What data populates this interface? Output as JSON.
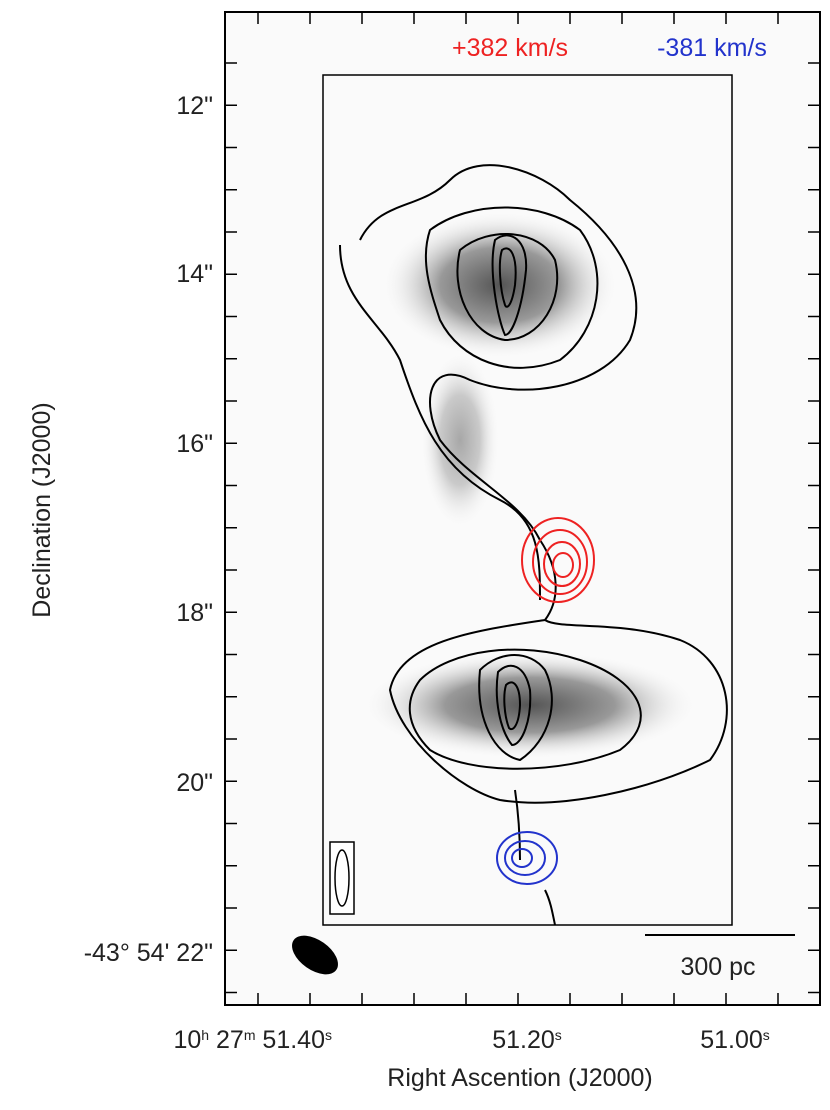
{
  "figure": {
    "velocity_labels": [
      "+382 km/s",
      "-381 km/s"
    ],
    "y_axis": {
      "title": "Declination (J2000)",
      "ticks": [
        "12\"",
        "14\"",
        "16\"",
        "18\"",
        "20\"",
        "-43° 54' 22\""
      ]
    },
    "x_axis": {
      "title": "Right Ascention (J2000)",
      "ticks": [
        [
          "10",
          "h",
          " 27",
          "m",
          " 51.40",
          "s"
        ],
        [
          "51.20",
          "s"
        ],
        [
          "51.00",
          "s"
        ]
      ]
    },
    "scale_bar": "300 pc"
  }
}
